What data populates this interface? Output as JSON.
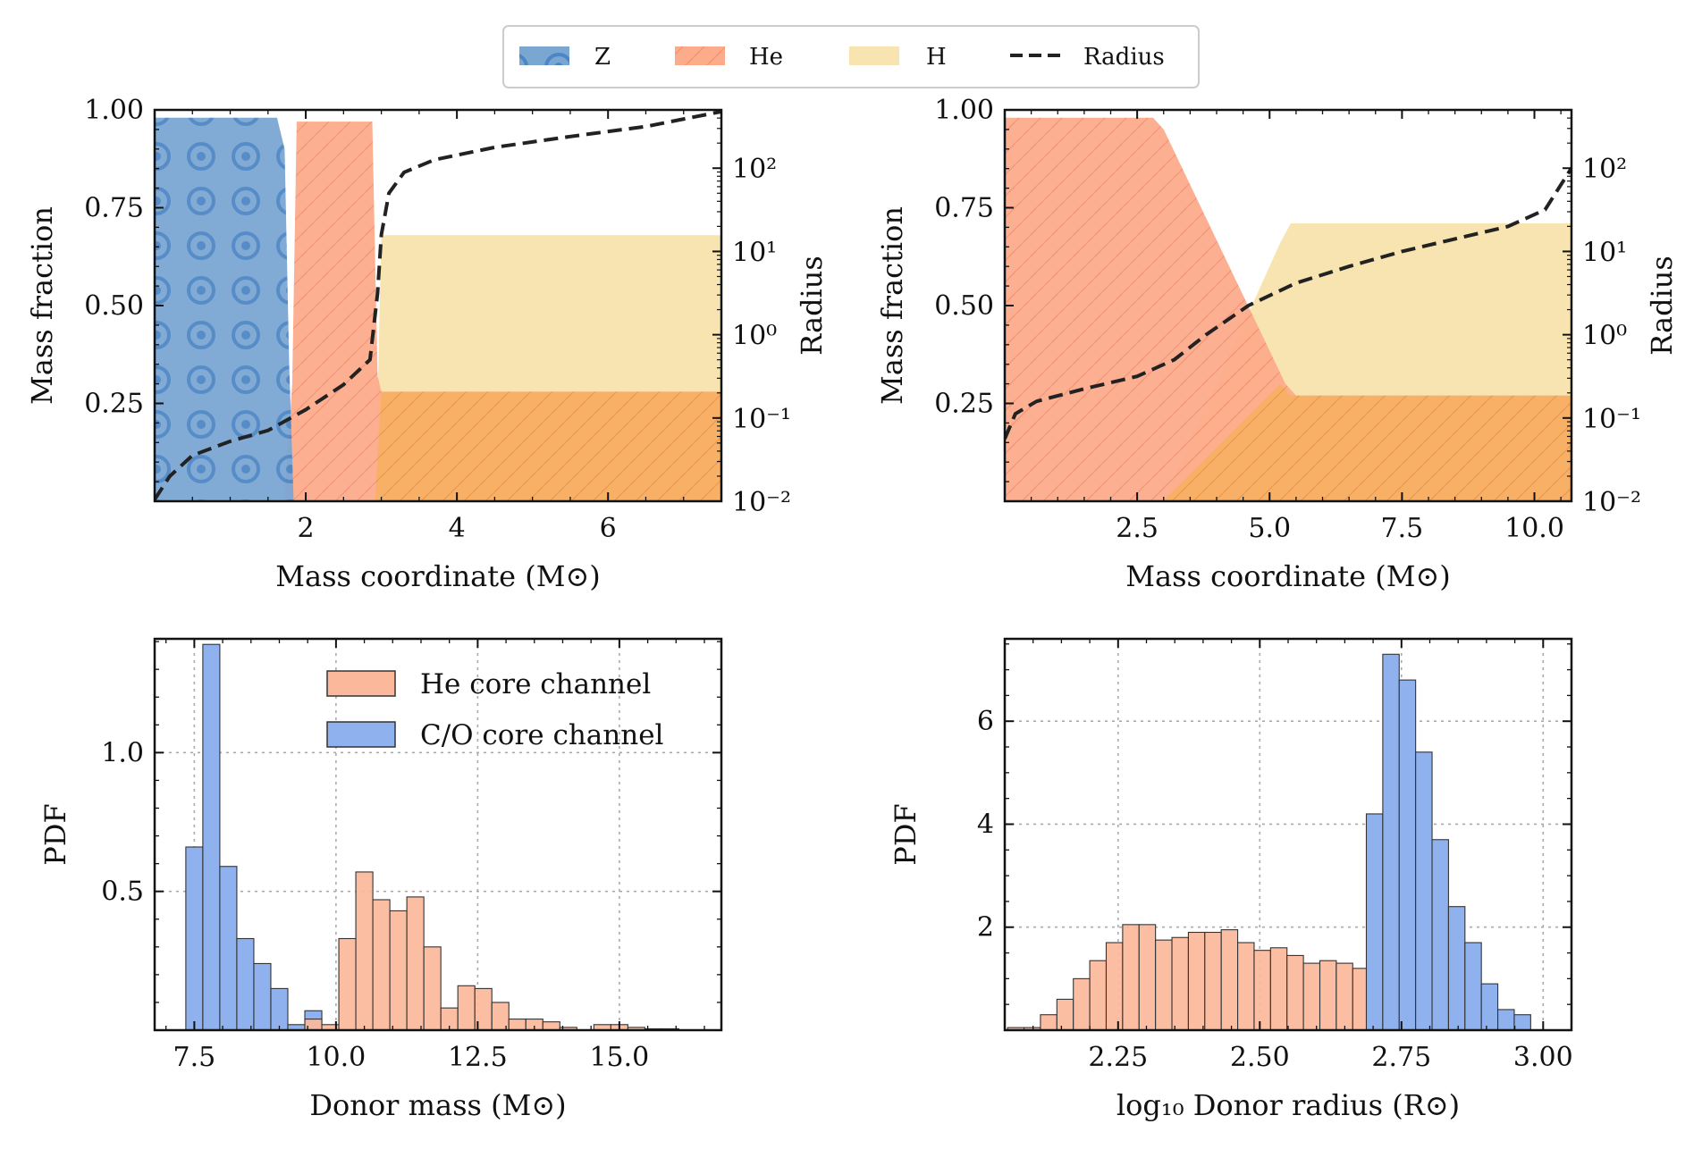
{
  "legend": {
    "items": [
      {
        "key": "Z",
        "label": "Z",
        "color": "#7aa6d2",
        "pattern": "circles"
      },
      {
        "key": "He",
        "label": "He",
        "color": "#fca98a",
        "pattern": "hatch"
      },
      {
        "key": "H",
        "label": "H",
        "color": "#f7e4b0",
        "pattern": "none"
      },
      {
        "key": "Radius",
        "label": "Radius",
        "color": "#222222",
        "pattern": "dashed"
      }
    ]
  },
  "colors": {
    "z_fill": "#7aa6d2",
    "z_pattern": "#4d86c4",
    "he_fill": "#fcab8b",
    "he_overlap": "#f7b064",
    "h_fill": "#f7e4b0",
    "hist_he": "#fcb89b",
    "hist_co": "#8fb2ee",
    "hist_edge": "#333333",
    "grid": "#aaaaaa",
    "radius_line": "#222222"
  },
  "chart_data": [
    {
      "id": "top-left",
      "type": "area",
      "xlabel": "Mass coordinate (M⊙)",
      "ylabel": "Mass fraction",
      "y2label": "Radius",
      "xlim": [
        0,
        7.5
      ],
      "ylim": [
        0,
        1.0
      ],
      "y2lim_log": [
        -2,
        2.7
      ],
      "xticks": [
        2,
        4,
        6
      ],
      "xtick_labels": [
        "2",
        "4",
        "6"
      ],
      "yticks": [
        0.25,
        0.5,
        0.75,
        1.0
      ],
      "ytick_labels": [
        "0.25",
        "0.50",
        "0.75",
        "1.00"
      ],
      "y2ticks_exp": [
        -2,
        -1,
        0,
        1,
        2
      ],
      "y2tick_labels": [
        "10⁻²",
        "10⁻¹",
        "10⁰",
        "10¹",
        "10²"
      ],
      "z": {
        "x": [
          0,
          1.62,
          1.72,
          1.78,
          1.84
        ],
        "y": [
          0.98,
          0.98,
          0.9,
          0.35,
          0.0
        ]
      },
      "he": {
        "x": [
          1.72,
          1.82,
          1.88,
          2.88,
          2.92,
          2.95,
          3.0,
          7.5
        ],
        "y": [
          0.0,
          0.3,
          0.97,
          0.97,
          0.6,
          0.32,
          0.28,
          0.28
        ]
      },
      "h": {
        "x": [
          2.92,
          3.0,
          7.5
        ],
        "y": [
          0.0,
          0.68,
          0.68
        ],
        "lower": [
          0.0,
          0.28,
          0.28
        ]
      },
      "radius": {
        "x": [
          0,
          0.2,
          0.5,
          1.0,
          1.5,
          2.0,
          2.5,
          2.85,
          2.95,
          3.0,
          3.1,
          3.3,
          3.7,
          4.5,
          5.5,
          6.5,
          7.5
        ],
        "log_r": [
          -1.98,
          -1.7,
          -1.45,
          -1.28,
          -1.15,
          -0.9,
          -0.6,
          -0.3,
          0.5,
          1.2,
          1.7,
          1.95,
          2.1,
          2.25,
          2.38,
          2.5,
          2.68
        ]
      }
    },
    {
      "id": "top-right",
      "type": "area",
      "xlabel": "Mass coordinate (M⊙)",
      "ylabel": "Mass fraction",
      "y2label": "Radius",
      "xlim": [
        0,
        10.7
      ],
      "ylim": [
        0,
        1.0
      ],
      "y2lim_log": [
        -2,
        2.7
      ],
      "xticks": [
        2.5,
        5.0,
        7.5,
        10.0
      ],
      "xtick_labels": [
        "2.5",
        "5.0",
        "7.5",
        "10.0"
      ],
      "yticks": [
        0.25,
        0.5,
        0.75,
        1.0
      ],
      "ytick_labels": [
        "0.25",
        "0.50",
        "0.75",
        "1.00"
      ],
      "y2ticks_exp": [
        -2,
        -1,
        0,
        1,
        2
      ],
      "y2tick_labels": [
        "10⁻²",
        "10⁻¹",
        "10⁰",
        "10¹",
        "10²"
      ],
      "he": {
        "x": [
          0,
          2.8,
          3.0,
          5.3,
          5.5,
          10.7
        ],
        "y": [
          0.98,
          0.98,
          0.95,
          0.3,
          0.27,
          0.27
        ]
      },
      "h": {
        "x": [
          3.0,
          5.2,
          5.4,
          10.7
        ],
        "y": [
          0.0,
          0.66,
          0.71,
          0.71
        ],
        "lower": [
          0.0,
          0.3,
          0.27,
          0.27
        ]
      },
      "radius": {
        "x": [
          0,
          0.2,
          0.6,
          1.5,
          2.5,
          3.2,
          3.8,
          4.6,
          5.5,
          6.5,
          7.5,
          8.5,
          9.5,
          10.2,
          10.7
        ],
        "log_r": [
          -1.25,
          -0.95,
          -0.8,
          -0.65,
          -0.5,
          -0.3,
          0.0,
          0.35,
          0.62,
          0.82,
          1.0,
          1.15,
          1.3,
          1.5,
          2.0
        ]
      }
    },
    {
      "id": "bottom-left",
      "type": "bar",
      "xlabel": "Donor mass (M⊙)",
      "ylabel": "PDF",
      "xlim": [
        6.8,
        16.8
      ],
      "ylim": [
        0,
        1.41
      ],
      "xticks": [
        7.5,
        10.0,
        12.5,
        15.0
      ],
      "xtick_labels": [
        "7.5",
        "10.0",
        "12.5",
        "15.0"
      ],
      "yticks": [
        0.5,
        1.0
      ],
      "ytick_labels": [
        "0.5",
        "1.0"
      ],
      "legend_entries": [
        "He core channel",
        "C/O core channel"
      ],
      "series": [
        {
          "name": "C/O core channel",
          "bin_start": 7.35,
          "bin_width": 0.3,
          "values": [
            0.66,
            1.39,
            0.59,
            0.33,
            0.24,
            0.15,
            0.02,
            0.07
          ]
        },
        {
          "name": "He core channel",
          "bin_start": 9.15,
          "bin_width": 0.3,
          "values": [
            0.0,
            0.04,
            0.02,
            0.33,
            0.57,
            0.47,
            0.43,
            0.48,
            0.3,
            0.08,
            0.16,
            0.15,
            0.1,
            0.04,
            0.04,
            0.03,
            0.01,
            0.0,
            0.02,
            0.02,
            0.01,
            0.005,
            0.005
          ]
        }
      ]
    },
    {
      "id": "bottom-right",
      "type": "bar",
      "xlabel": "log₁₀ Donor radius (R⊙)",
      "ylabel": "PDF",
      "xlim": [
        2.05,
        3.05
      ],
      "ylim": [
        0,
        7.6
      ],
      "xticks": [
        2.25,
        2.5,
        2.75,
        3.0
      ],
      "xtick_labels": [
        "2.25",
        "2.50",
        "2.75",
        "3.00"
      ],
      "yticks": [
        2,
        4,
        6
      ],
      "ytick_labels": [
        "2",
        "4",
        "6"
      ],
      "series": [
        {
          "name": "He core channel",
          "bin_start": 2.055,
          "bin_width": 0.029,
          "values": [
            0.05,
            0.05,
            0.3,
            0.6,
            1.0,
            1.35,
            1.7,
            2.05,
            2.05,
            1.75,
            1.8,
            1.9,
            1.9,
            1.95,
            1.7,
            1.55,
            1.6,
            1.45,
            1.3,
            1.35,
            1.3,
            1.2,
            0.9,
            0.4,
            0.38,
            0.3,
            0.25,
            0.05,
            0.05
          ]
        },
        {
          "name": "C/O core channel",
          "bin_start": 2.688,
          "bin_width": 0.029,
          "values": [
            4.2,
            7.3,
            6.8,
            5.4,
            3.7,
            2.4,
            1.7,
            0.9,
            0.4,
            0.3
          ]
        }
      ]
    }
  ]
}
